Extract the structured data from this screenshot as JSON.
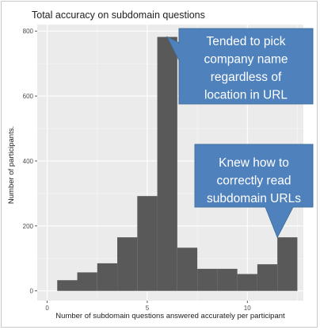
{
  "chart_data": {
    "type": "bar",
    "title": "Total accuracy on subdomain questions",
    "xlabel": "Number of subdomain questions answered accurately per participant",
    "ylabel": "Number of participants.",
    "x": [
      1,
      2,
      3,
      4,
      5,
      6,
      7,
      8,
      9,
      10,
      11,
      12
    ],
    "values": [
      33,
      57,
      85,
      165,
      292,
      782,
      133,
      68,
      68,
      52,
      82,
      165
    ],
    "xlim": [
      -0.5,
      12.8
    ],
    "ylim": [
      -30,
      820
    ],
    "xticks": [
      "0",
      "5",
      "10"
    ],
    "xtick_values": [
      0,
      5,
      10
    ],
    "yticks": [
      "0",
      "200",
      "400",
      "600",
      "800"
    ],
    "ytick_values": [
      0,
      200,
      400,
      600,
      800
    ],
    "grid": true,
    "bar_color": "#595959",
    "panel_color": "#ebebeb",
    "annotations": [
      {
        "lines": [
          "Tended to pick",
          "company name",
          "regardless of",
          "location in URL"
        ],
        "color": "#4f81bd",
        "points_to": {
          "x": 6,
          "y": 782
        }
      },
      {
        "lines": [
          "Knew how to",
          "correctly read",
          "subdomain URLs"
        ],
        "color": "#4f81bd",
        "points_to": {
          "x": 11.5,
          "y": 165
        }
      }
    ]
  }
}
